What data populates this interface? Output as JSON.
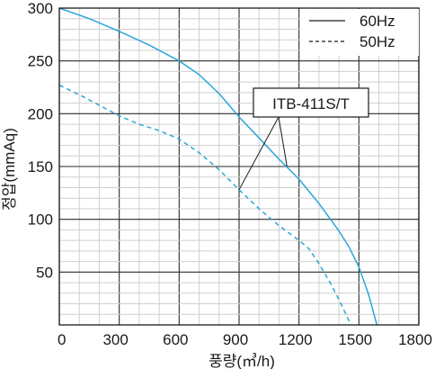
{
  "chart_data": {
    "type": "line",
    "xlabel": "풍량(㎥/h)",
    "ylabel": "정압(mmAq)",
    "xlim": [
      0,
      1800
    ],
    "ylim": [
      0,
      300
    ],
    "x_ticks": [
      0,
      300,
      600,
      900,
      1200,
      1500,
      1800
    ],
    "y_ticks": [
      0,
      50,
      100,
      150,
      200,
      250,
      300
    ],
    "x_tick_labels": [
      "0",
      "300",
      "600",
      "900",
      "1200",
      "1500",
      "1800"
    ],
    "y_tick_labels": [
      "0",
      "50",
      "100",
      "150",
      "200",
      "250",
      "300"
    ],
    "grid": true,
    "legend_position": "top-right",
    "series": [
      {
        "name": "60Hz",
        "line_style": "solid",
        "color": "#2aa7d8",
        "x": [
          0,
          150,
          300,
          450,
          600,
          700,
          800,
          900,
          1000,
          1100,
          1200,
          1300,
          1400,
          1450,
          1500,
          1550,
          1590
        ],
        "y": [
          300,
          290,
          278,
          265,
          250,
          237,
          219,
          197,
          177,
          157,
          138,
          115,
          89,
          74,
          55,
          28,
          0
        ]
      },
      {
        "name": "50Hz",
        "line_style": "dashed",
        "color": "#2aa7d8",
        "x": [
          0,
          100,
          200,
          300,
          400,
          500,
          600,
          700,
          800,
          900,
          1000,
          1100,
          1200,
          1250,
          1300,
          1350,
          1400,
          1440,
          1460
        ],
        "y": [
          227,
          218,
          208,
          198,
          190,
          184,
          176,
          163,
          147,
          128,
          110,
          94,
          80,
          72,
          58,
          42,
          24,
          8,
          0
        ]
      }
    ],
    "annotation": {
      "text": "ITB-411S/T",
      "targets": [
        {
          "series": "60Hz",
          "x": 1140,
          "y": 150
        },
        {
          "series": "50Hz",
          "x": 900,
          "y": 128
        }
      ]
    }
  }
}
